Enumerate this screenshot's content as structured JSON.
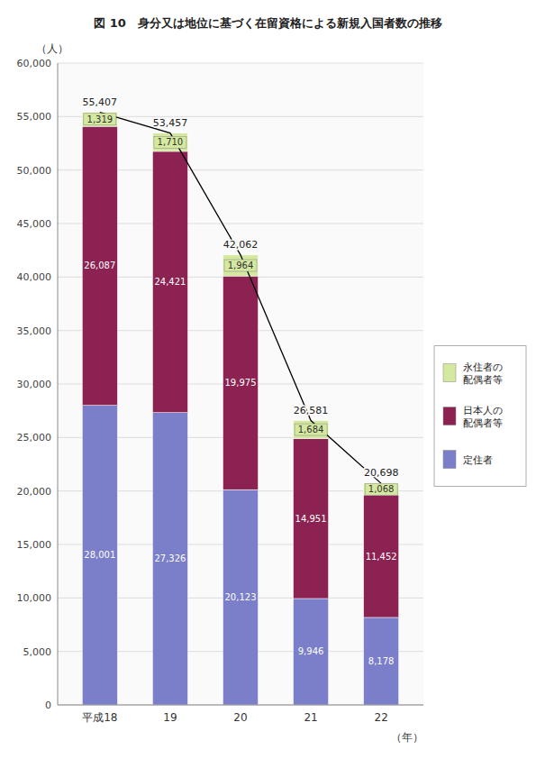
{
  "chart_data": {
    "type": "bar",
    "stacked": true,
    "title": "図 10　身分又は地位に基づく在留資格による新規入国者数の推移",
    "x_label": "（年）",
    "y_label": "（人）",
    "categories": [
      "平成18",
      "19",
      "20",
      "21",
      "22"
    ],
    "series": [
      {
        "name": "定住者",
        "color": "#7B7EC8",
        "values": [
          28001,
          27326,
          20123,
          9946,
          8178
        ],
        "value_labels": [
          "28,001",
          "27,326",
          "20,123",
          "9,946",
          "8,178"
        ]
      },
      {
        "name": "日本人の\n配偶者等",
        "color": "#8B2252",
        "values": [
          26087,
          24421,
          19975,
          14951,
          11452
        ],
        "value_labels": [
          "26,087",
          "24,421",
          "19,975",
          "14,951",
          "11,452"
        ]
      },
      {
        "name": "永住者の\n配偶者等",
        "color": "#D4E8A0",
        "values": [
          1319,
          1710,
          1964,
          1684,
          1068
        ],
        "value_labels": [
          "1,319",
          "1,710",
          "1,964",
          "1,684",
          "1,068"
        ]
      },
      {
        "type": "line",
        "color": "#000000",
        "values": [
          55407,
          53457,
          42062,
          26581,
          20698
        ],
        "value_labels": [
          "55,407",
          "53,457",
          "42,062",
          "26,581",
          "20,698"
        ]
      }
    ],
    "ylim": [
      0,
      60000
    ],
    "yticks": [
      0,
      {
        "value": 5000,
        "label": "5,000"
      },
      {
        "value": 10000,
        "label": "10,000"
      },
      {
        "value": 15000,
        "label": "15,000"
      },
      {
        "value": 20000,
        "label": "20,000"
      },
      {
        "value": 25000,
        "label": "25,000"
      },
      {
        "value": 30000,
        "label": "30,000"
      },
      {
        "value": 35000,
        "label": "35,000"
      },
      {
        "value": 40000,
        "label": "40,000"
      },
      {
        "value": 45000,
        "label": "45,000"
      },
      {
        "value": 50000,
        "label": "50,000"
      },
      {
        "value": 55000,
        "label": "55,000"
      },
      {
        "value": 60000,
        "label": "60,000"
      }
    ],
    "grid": true,
    "legend": "right",
    "data_labels": true
  }
}
